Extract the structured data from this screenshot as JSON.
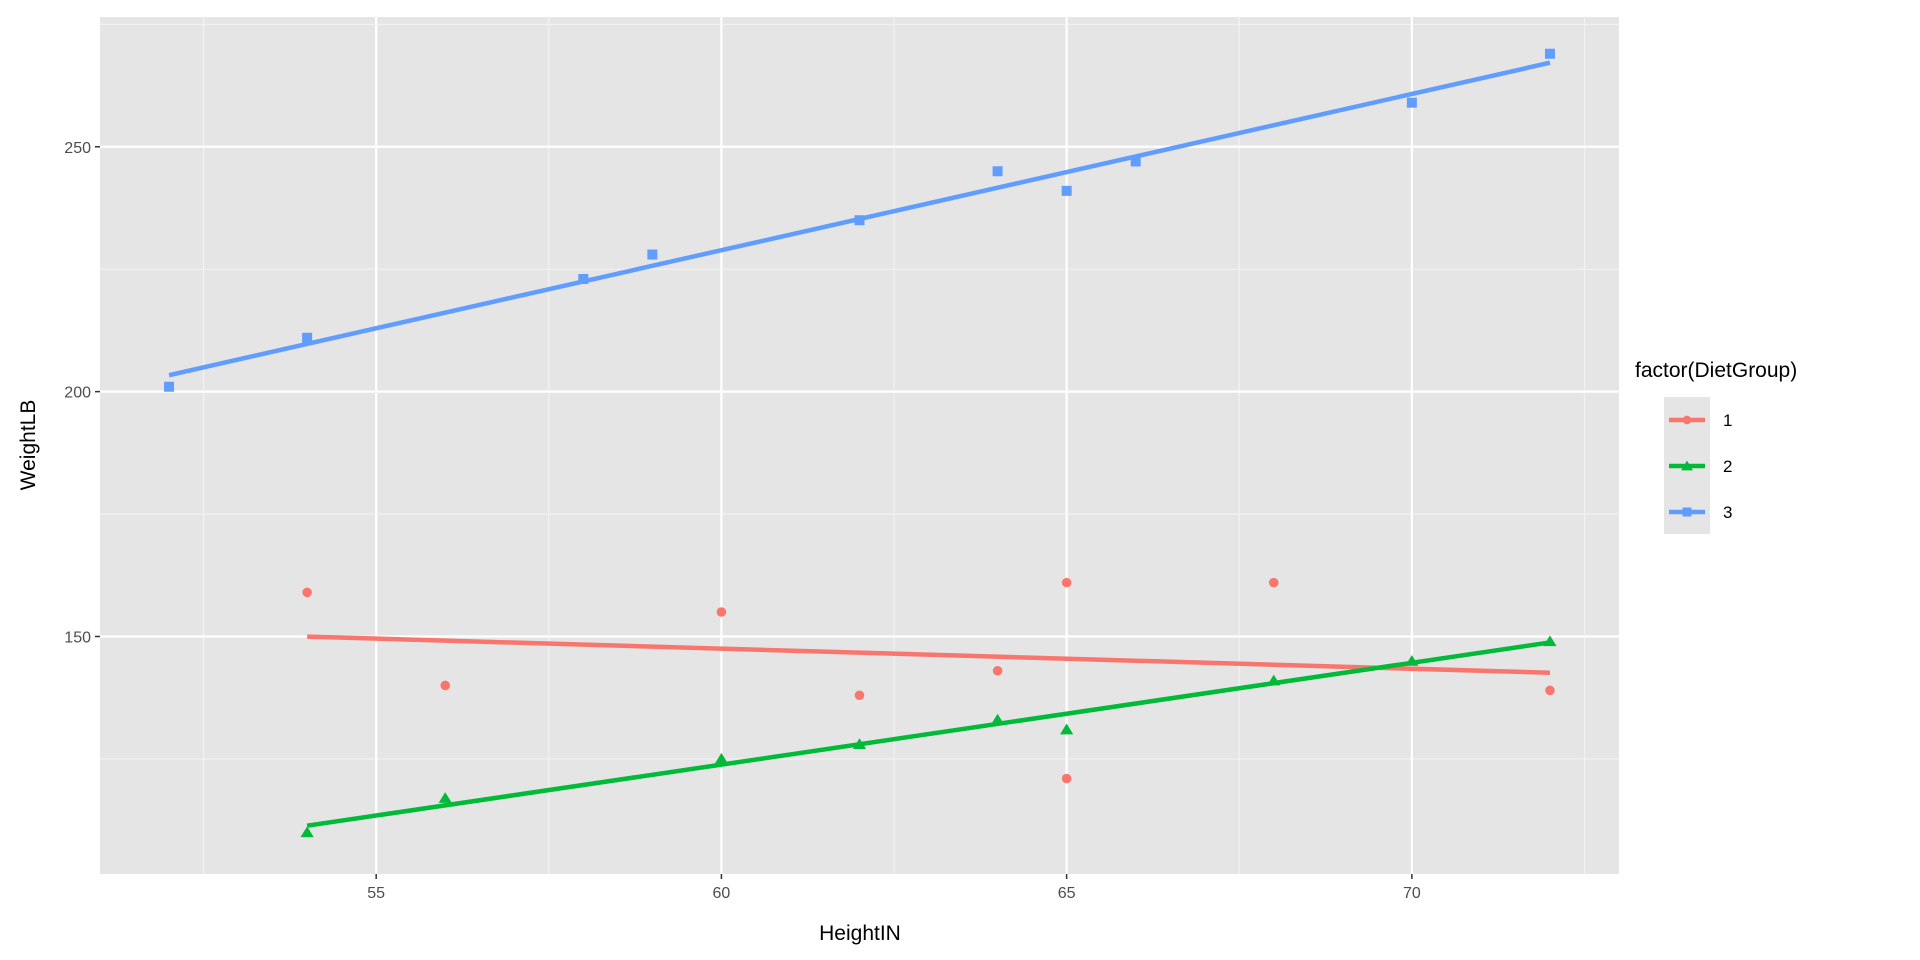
{
  "chart_data": {
    "type": "scatter",
    "title": "",
    "xlabel": "HeightIN",
    "ylabel": "WeightLB",
    "xlim": [
      51,
      73
    ],
    "ylim": [
      101.5,
      276.5
    ],
    "xticks": [
      55,
      60,
      65,
      70
    ],
    "yticks": [
      150,
      200,
      250
    ],
    "grid": true,
    "legend": {
      "title": "factor(DietGroup)",
      "placement": "right"
    },
    "smooth": "linear regression per group",
    "series": [
      {
        "name": "1",
        "color": "#F8766D",
        "shape": "circle",
        "x": [
          54,
          56,
          60,
          62,
          64,
          65,
          65,
          68,
          72
        ],
        "y": [
          159,
          140,
          155,
          138,
          143,
          161,
          121,
          161,
          139
        ]
      },
      {
        "name": "2",
        "color": "#00BA38",
        "shape": "triangle",
        "x": [
          54,
          56,
          60,
          62,
          64,
          65,
          68,
          70,
          72
        ],
        "y": [
          110,
          117,
          125,
          128,
          133,
          131,
          141,
          145,
          149
        ]
      },
      {
        "name": "3",
        "color": "#619CFF",
        "shape": "square",
        "x": [
          52,
          54,
          58,
          59,
          62,
          64,
          65,
          66,
          70,
          72
        ],
        "y": [
          201,
          211,
          223,
          228,
          235,
          245,
          241,
          247,
          259,
          269
        ]
      }
    ]
  }
}
